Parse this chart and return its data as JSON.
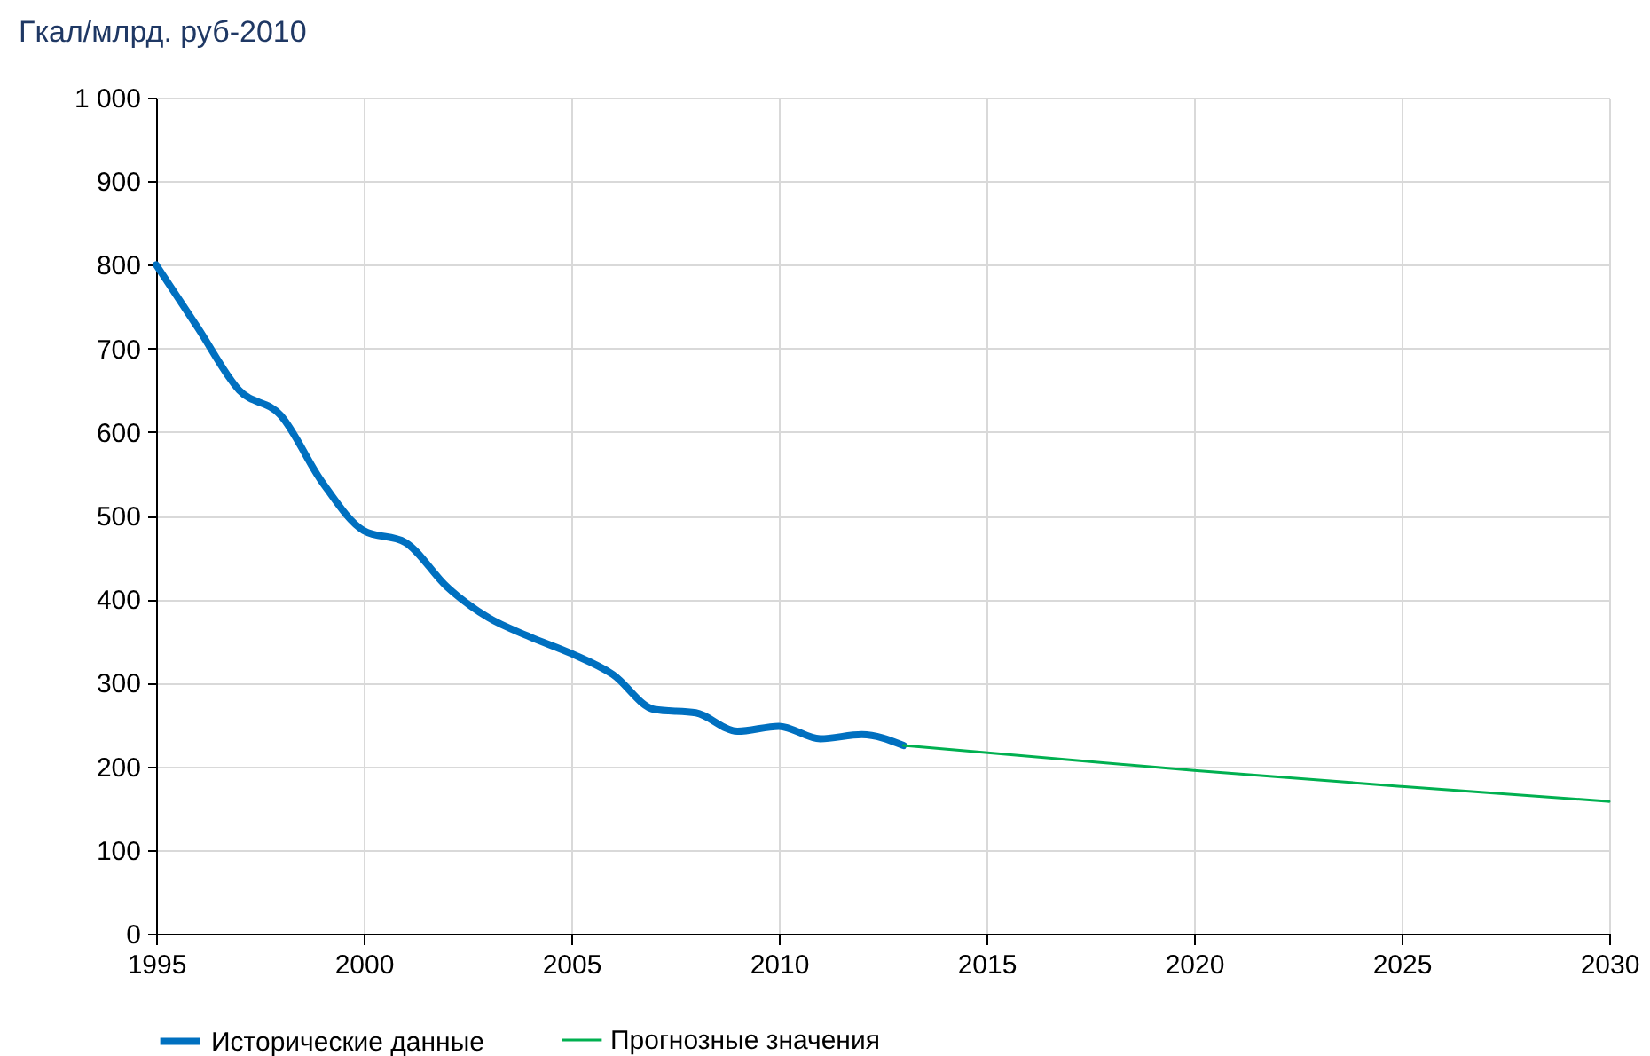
{
  "chart_data": {
    "type": "line",
    "ylabel": "Гкал/млрд. руб-2010",
    "x": [
      1995,
      1996,
      1997,
      1998,
      1999,
      2000,
      2001,
      2002,
      2003,
      2004,
      2005,
      2006,
      2007,
      2008,
      2009,
      2010,
      2011,
      2012,
      2013
    ],
    "series": [
      {
        "name": "Исторические данные",
        "color": "#0070c0",
        "values": [
          800,
          725,
          650,
          620,
          540,
          482,
          468,
          415,
          378,
          355,
          335,
          310,
          268,
          264,
          242,
          248,
          233,
          238,
          225
        ]
      },
      {
        "name": "Прогнозные значения",
        "color": "#00b050",
        "x": [
          2013,
          2020,
          2025,
          2030
        ],
        "values": [
          225,
          195,
          176,
          158
        ]
      }
    ],
    "xlim": [
      1995,
      2030
    ],
    "xticks": [
      1995,
      2000,
      2005,
      2010,
      2015,
      2020,
      2025,
      2030
    ],
    "ylim": [
      0,
      1000
    ],
    "yticks": [
      0,
      100,
      200,
      300,
      400,
      500,
      600,
      700,
      800,
      900,
      {
        "value": 1000,
        "label": "1 000"
      }
    ],
    "grid": true,
    "legend": "bottom"
  }
}
